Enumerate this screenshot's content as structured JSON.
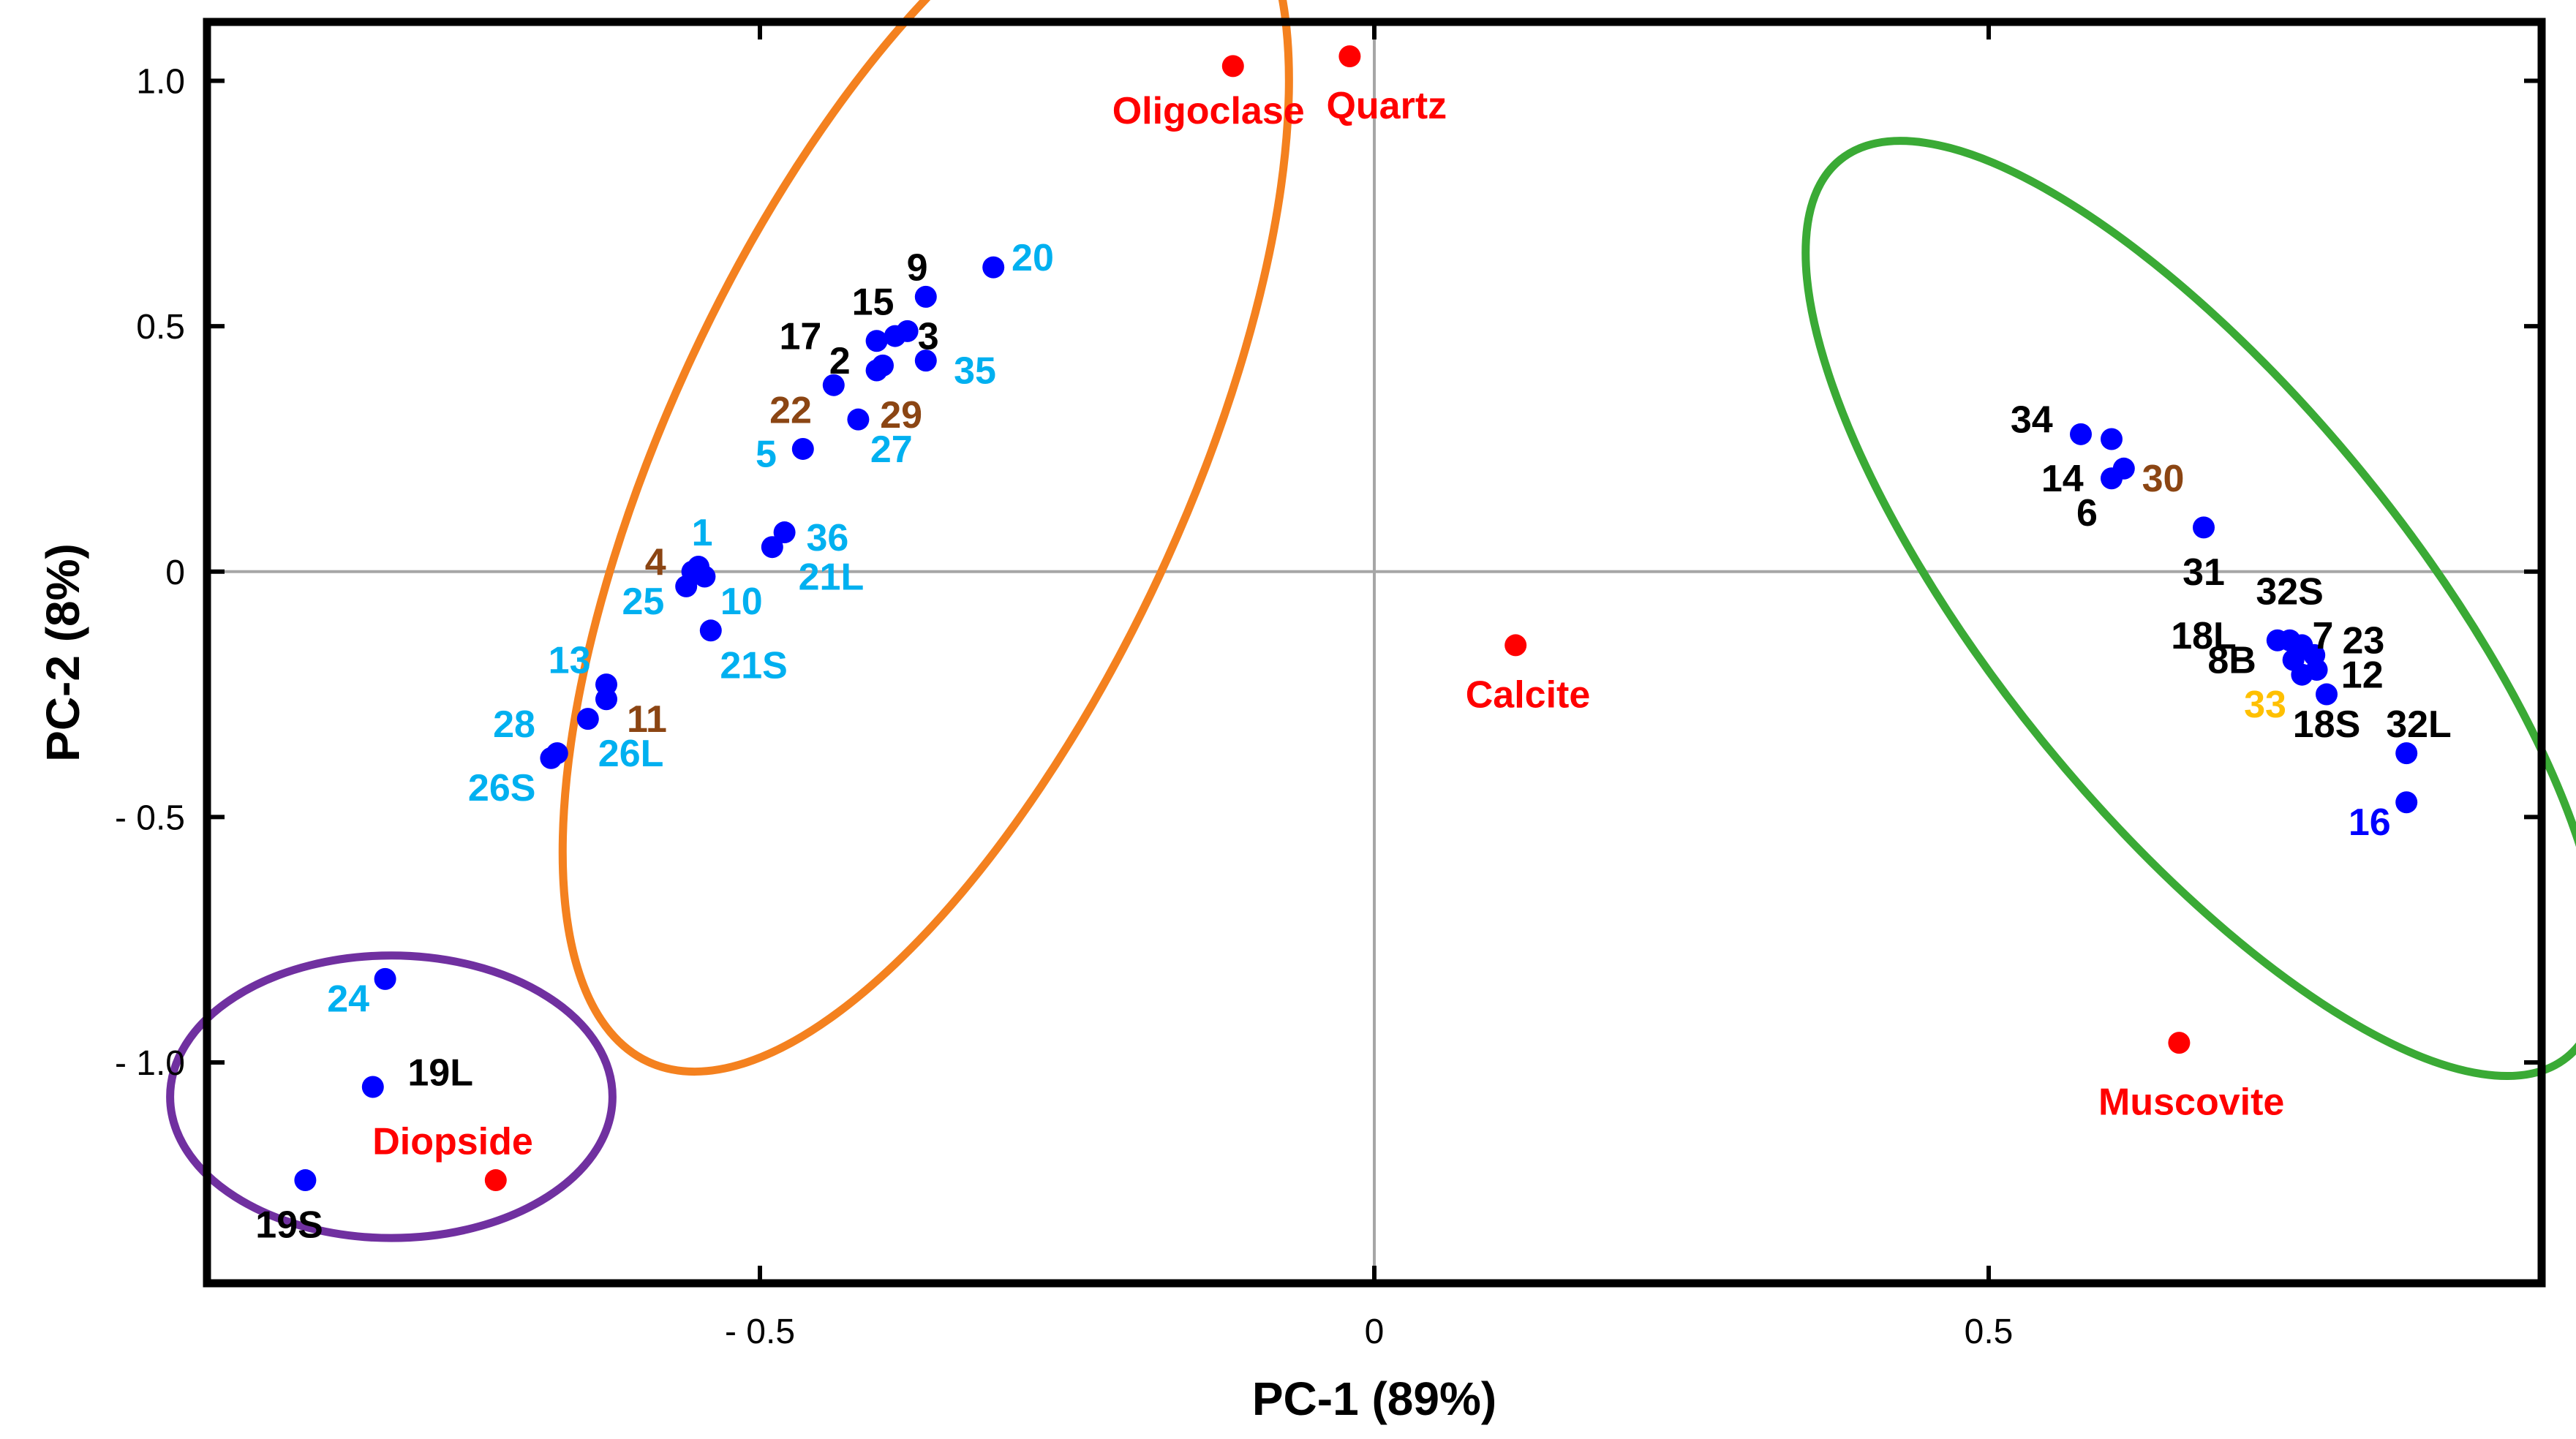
{
  "chart_data": {
    "type": "scatter",
    "title": "",
    "xlabel": "PC-1 (89%)",
    "ylabel": "PC-2 (8%)",
    "xlim": [
      -0.95,
      0.95
    ],
    "ylim": [
      -1.45,
      1.12
    ],
    "xticks": [
      -0.5,
      0,
      0.5
    ],
    "xtick_labels": [
      "- 0.5",
      "0",
      "0.5"
    ],
    "yticks": [
      1.0,
      0.5,
      0,
      -0.5,
      -1.0
    ],
    "ytick_labels": [
      "1.0",
      "0.5",
      "0",
      "- 0.5",
      "- 1.0"
    ],
    "colors": {
      "sample_marker": "#0000ff",
      "mineral_marker": "#ff0000",
      "text_black": "#000000",
      "text_cyan": "#00b0f0",
      "text_brown": "#8b4513",
      "text_gold": "#ffc000",
      "text_blue": "#0000ff",
      "text_red": "#ff0000",
      "group_orange": "#f4811f",
      "group_green": "#3aaa35",
      "group_purple": "#7030a0"
    },
    "groups": [
      {
        "name": "orange-group",
        "color": "#f4811f",
        "cx": -0.365,
        "cy": 0.215,
        "rx": 0.535,
        "ry": 0.21,
        "angle": -65
      },
      {
        "name": "green-group",
        "color": "#3aaa35",
        "cx": 0.675,
        "cy": -0.075,
        "rx": 0.47,
        "ry": 0.17,
        "angle": 51
      },
      {
        "name": "purple-group",
        "color": "#7030a0",
        "cx": -0.8,
        "cy": -1.07,
        "rx": 0.18,
        "ry": 0.115,
        "angle": 0
      }
    ],
    "series": [
      {
        "name": "Samples",
        "color": "#0000ff",
        "points": [
          {
            "label": "20",
            "x": -0.31,
            "y": 0.62,
            "color": "#00b0f0",
            "dx": 0.032,
            "dy": 0.02,
            "anchor": "middle"
          },
          {
            "label": "9",
            "x": -0.365,
            "y": 0.56,
            "color": "#000000",
            "dx": -0.007,
            "dy": 0.06,
            "anchor": "middle"
          },
          {
            "label": "15",
            "x": -0.38,
            "y": 0.49,
            "color": "#000000",
            "dx": -0.028,
            "dy": 0.06,
            "anchor": "middle"
          },
          {
            "label": "3",
            "x": -0.39,
            "y": 0.48,
            "color": "#000000",
            "dx": 0.027,
            "dy": 0.0,
            "anchor": "middle"
          },
          {
            "label": "17",
            "x": -0.405,
            "y": 0.47,
            "color": "#000000",
            "dx": -0.062,
            "dy": 0.01,
            "anchor": "middle"
          },
          {
            "label": "2",
            "x": -0.405,
            "y": 0.41,
            "color": "#000000",
            "dx": -0.03,
            "dy": 0.02,
            "anchor": "middle"
          },
          {
            "label": "35",
            "x": -0.365,
            "y": 0.43,
            "color": "#00b0f0",
            "dx": 0.04,
            "dy": -0.02,
            "anchor": "middle"
          },
          {
            "label": "29",
            "x": -0.4,
            "y": 0.42,
            "color": "#8b4513",
            "dx": 0.015,
            "dy": -0.1,
            "anchor": "middle"
          },
          {
            "label": "22",
            "x": -0.44,
            "y": 0.38,
            "color": "#8b4513",
            "dx": -0.035,
            "dy": -0.05,
            "anchor": "middle"
          },
          {
            "label": "27",
            "x": -0.42,
            "y": 0.31,
            "color": "#00b0f0",
            "dx": 0.027,
            "dy": -0.06,
            "anchor": "middle"
          },
          {
            "label": "5",
            "x": -0.465,
            "y": 0.25,
            "color": "#00b0f0",
            "dx": -0.03,
            "dy": -0.01,
            "anchor": "middle"
          },
          {
            "label": "36",
            "x": -0.48,
            "y": 0.08,
            "color": "#00b0f0",
            "dx": 0.035,
            "dy": -0.01,
            "anchor": "middle"
          },
          {
            "label": "21L",
            "x": -0.49,
            "y": 0.05,
            "color": "#00b0f0",
            "dx": 0.048,
            "dy": -0.06,
            "anchor": "middle"
          },
          {
            "label": "1",
            "x": -0.55,
            "y": 0.01,
            "color": "#00b0f0",
            "dx": 0.003,
            "dy": 0.07,
            "anchor": "middle"
          },
          {
            "label": "4",
            "x": -0.555,
            "y": 0.0,
            "color": "#8b4513",
            "dx": -0.03,
            "dy": 0.02,
            "anchor": "middle"
          },
          {
            "label": "25",
            "x": -0.56,
            "y": -0.03,
            "color": "#00b0f0",
            "dx": -0.035,
            "dy": -0.03,
            "anchor": "middle"
          },
          {
            "label": "10",
            "x": -0.545,
            "y": -0.01,
            "color": "#00b0f0",
            "dx": 0.03,
            "dy": -0.05,
            "anchor": "middle"
          },
          {
            "label": "21S",
            "x": -0.54,
            "y": -0.12,
            "color": "#00b0f0",
            "dx": 0.035,
            "dy": -0.07,
            "anchor": "middle"
          },
          {
            "label": "13",
            "x": -0.625,
            "y": -0.23,
            "color": "#00b0f0",
            "dx": -0.03,
            "dy": 0.05,
            "anchor": "middle"
          },
          {
            "label": "11",
            "x": -0.625,
            "y": -0.26,
            "color": "#8b4513",
            "dx": 0.033,
            "dy": -0.04,
            "anchor": "middle"
          },
          {
            "label": "28",
            "x": -0.64,
            "y": -0.3,
            "color": "#00b0f0",
            "dx": -0.06,
            "dy": -0.01,
            "anchor": "middle"
          },
          {
            "label": "26L",
            "x": -0.665,
            "y": -0.37,
            "color": "#00b0f0",
            "dx": 0.06,
            "dy": -0.0,
            "anchor": "middle"
          },
          {
            "label": "26S",
            "x": -0.67,
            "y": -0.38,
            "color": "#00b0f0",
            "dx": -0.04,
            "dy": -0.06,
            "anchor": "middle"
          },
          {
            "label": "24",
            "x": -0.805,
            "y": -0.83,
            "color": "#00b0f0",
            "dx": -0.03,
            "dy": -0.04,
            "anchor": "middle"
          },
          {
            "label": "19L",
            "x": -0.815,
            "y": -1.05,
            "color": "#000000",
            "dx": 0.055,
            "dy": 0.03,
            "anchor": "middle"
          },
          {
            "label": "19S",
            "x": -0.87,
            "y": -1.24,
            "color": "#000000",
            "dx": -0.013,
            "dy": -0.09,
            "anchor": "middle"
          },
          {
            "label": "34",
            "x": 0.575,
            "y": 0.28,
            "color": "#000000",
            "dx": -0.04,
            "dy": 0.03,
            "anchor": "middle"
          },
          {
            "label": "14",
            "x": 0.6,
            "y": 0.27,
            "color": "#000000",
            "dx": -0.04,
            "dy": -0.08,
            "anchor": "middle"
          },
          {
            "label": "30",
            "x": 0.61,
            "y": 0.21,
            "color": "#8b4513",
            "dx": 0.032,
            "dy": -0.02,
            "anchor": "middle"
          },
          {
            "label": "6",
            "x": 0.6,
            "y": 0.19,
            "color": "#000000",
            "dx": -0.02,
            "dy": -0.07,
            "anchor": "middle"
          },
          {
            "label": "31",
            "x": 0.675,
            "y": 0.09,
            "color": "#000000",
            "dx": 0.0,
            "dy": -0.09,
            "anchor": "middle"
          },
          {
            "label": "32S",
            "x": 0.745,
            "y": -0.14,
            "color": "#000000",
            "dx": 0.0,
            "dy": 0.1,
            "anchor": "middle"
          },
          {
            "label": "18L",
            "x": 0.735,
            "y": -0.14,
            "color": "#000000",
            "dx": -0.06,
            "dy": 0.01,
            "anchor": "middle"
          },
          {
            "label": "7",
            "x": 0.755,
            "y": -0.15,
            "color": "#000000",
            "dx": 0.017,
            "dy": 0.02,
            "anchor": "middle"
          },
          {
            "label": "23",
            "x": 0.765,
            "y": -0.17,
            "color": "#000000",
            "dx": 0.04,
            "dy": 0.03,
            "anchor": "middle"
          },
          {
            "label": "8B",
            "x": 0.748,
            "y": -0.18,
            "color": "#000000",
            "dx": -0.05,
            "dy": -0.0,
            "anchor": "middle"
          },
          {
            "label": "12",
            "x": 0.767,
            "y": -0.2,
            "color": "#000000",
            "dx": 0.037,
            "dy": -0.01,
            "anchor": "middle"
          },
          {
            "label": "33",
            "x": 0.755,
            "y": -0.21,
            "color": "#ffc000",
            "dx": -0.03,
            "dy": -0.06,
            "anchor": "middle"
          },
          {
            "label": "18S",
            "x": 0.775,
            "y": -0.25,
            "color": "#000000",
            "dx": 0.0,
            "dy": -0.06,
            "anchor": "middle"
          },
          {
            "label": "32L",
            "x": 0.84,
            "y": -0.37,
            "color": "#000000",
            "dx": 0.01,
            "dy": 0.06,
            "anchor": "middle"
          },
          {
            "label": "16",
            "x": 0.84,
            "y": -0.47,
            "color": "#0000ff",
            "dx": -0.03,
            "dy": -0.04,
            "anchor": "middle"
          }
        ]
      },
      {
        "name": "Minerals",
        "color": "#ff0000",
        "points": [
          {
            "label": "Oligoclase",
            "x": -0.115,
            "y": 1.03,
            "color": "#ff0000",
            "dx": -0.02,
            "dy": -0.09,
            "anchor": "middle"
          },
          {
            "label": "Quartz",
            "x": -0.02,
            "y": 1.05,
            "color": "#ff0000",
            "dx": 0.03,
            "dy": -0.1,
            "anchor": "middle"
          },
          {
            "label": "Calcite",
            "x": 0.115,
            "y": -0.15,
            "color": "#ff0000",
            "dx": 0.01,
            "dy": -0.1,
            "anchor": "middle"
          },
          {
            "label": "Muscovite",
            "x": 0.655,
            "y": -0.96,
            "color": "#ff0000",
            "dx": 0.01,
            "dy": -0.12,
            "anchor": "middle"
          },
          {
            "label": "Diopside",
            "x": -0.715,
            "y": -1.24,
            "color": "#ff0000",
            "dx": -0.035,
            "dy": 0.08,
            "anchor": "middle"
          }
        ]
      }
    ]
  }
}
